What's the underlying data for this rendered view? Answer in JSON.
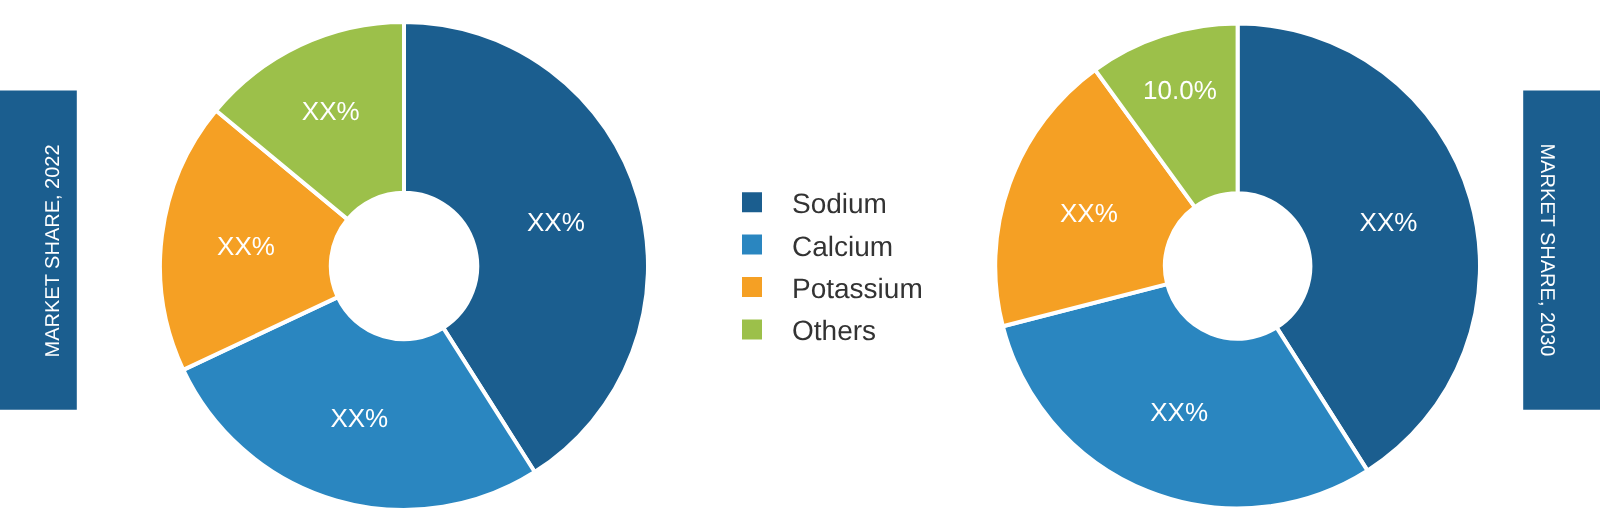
{
  "chart_data": [
    {
      "type": "donut",
      "ylabel": "MARKET SHARE, 2022",
      "categories": [
        "Sodium",
        "Calcium",
        "Potassium",
        "Others"
      ],
      "values": [
        41,
        27,
        18,
        14
      ],
      "colors": [
        "#1b5e8f",
        "#2a86c0",
        "#f5a024",
        "#9cc04a"
      ],
      "value_labels": [
        "XX%",
        "XX%",
        "XX%",
        "XX%"
      ],
      "legend": "right"
    },
    {
      "type": "donut",
      "ylabel": "MARKET SHARE, 2030",
      "categories": [
        null,
        null,
        null,
        null
      ],
      "values": [
        41,
        30,
        19,
        10
      ],
      "colors": [
        "#1b5e8f",
        "#2a86c0",
        "#f5a024",
        "#9cc04a"
      ],
      "value_labels": [
        "XX%",
        "XX%",
        "XX%",
        "10.0%"
      ]
    }
  ]
}
